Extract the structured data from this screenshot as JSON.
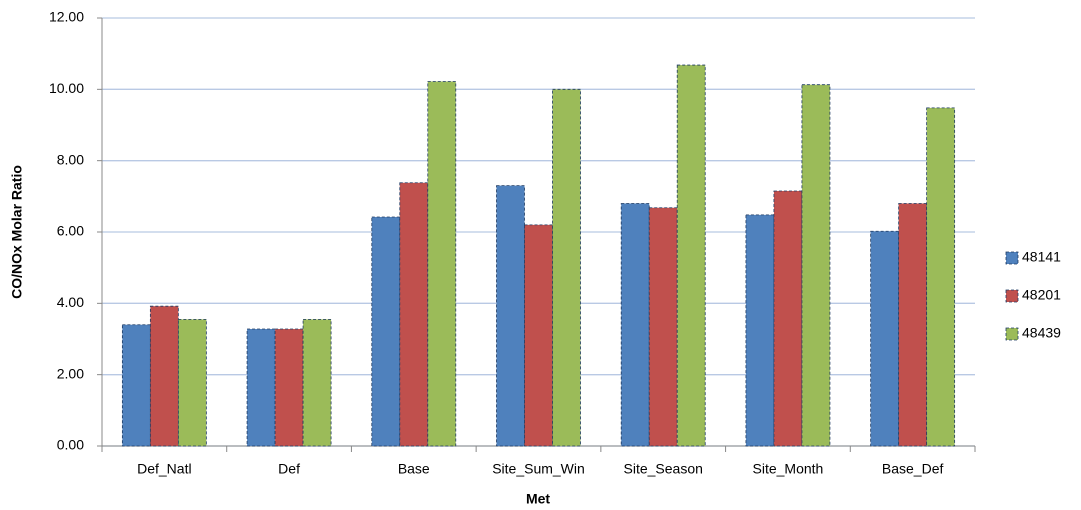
{
  "chart_data": {
    "type": "bar",
    "x_label": "Met",
    "y_label": "CO/NOx Molar Ratio",
    "categories": [
      "Def_Natl",
      "Def",
      "Base",
      "Site_Sum_Win",
      "Site_Season",
      "Site_Month",
      "Base_Def"
    ],
    "series": [
      {
        "name": "48141",
        "color": "#4f81bd",
        "values": [
          3.4,
          3.28,
          6.42,
          7.3,
          6.8,
          6.48,
          6.02
        ]
      },
      {
        "name": "48201",
        "color": "#c0504d",
        "values": [
          3.92,
          3.28,
          7.38,
          6.2,
          6.68,
          7.15,
          6.8
        ]
      },
      {
        "name": "48439",
        "color": "#9bbb59",
        "values": [
          3.55,
          3.55,
          10.22,
          10.0,
          10.68,
          10.13,
          9.48
        ]
      }
    ],
    "ylim": [
      0,
      12
    ],
    "yticks": [
      {
        "value": 0,
        "label": "0.00"
      },
      {
        "value": 2,
        "label": "2.00"
      },
      {
        "value": 4,
        "label": "4.00"
      },
      {
        "value": 6,
        "label": "6.00"
      },
      {
        "value": 8,
        "label": "8.00"
      },
      {
        "value": 10,
        "label": "10.00"
      },
      {
        "value": 12,
        "label": "12.00"
      }
    ],
    "grid": true,
    "legend": "right"
  }
}
